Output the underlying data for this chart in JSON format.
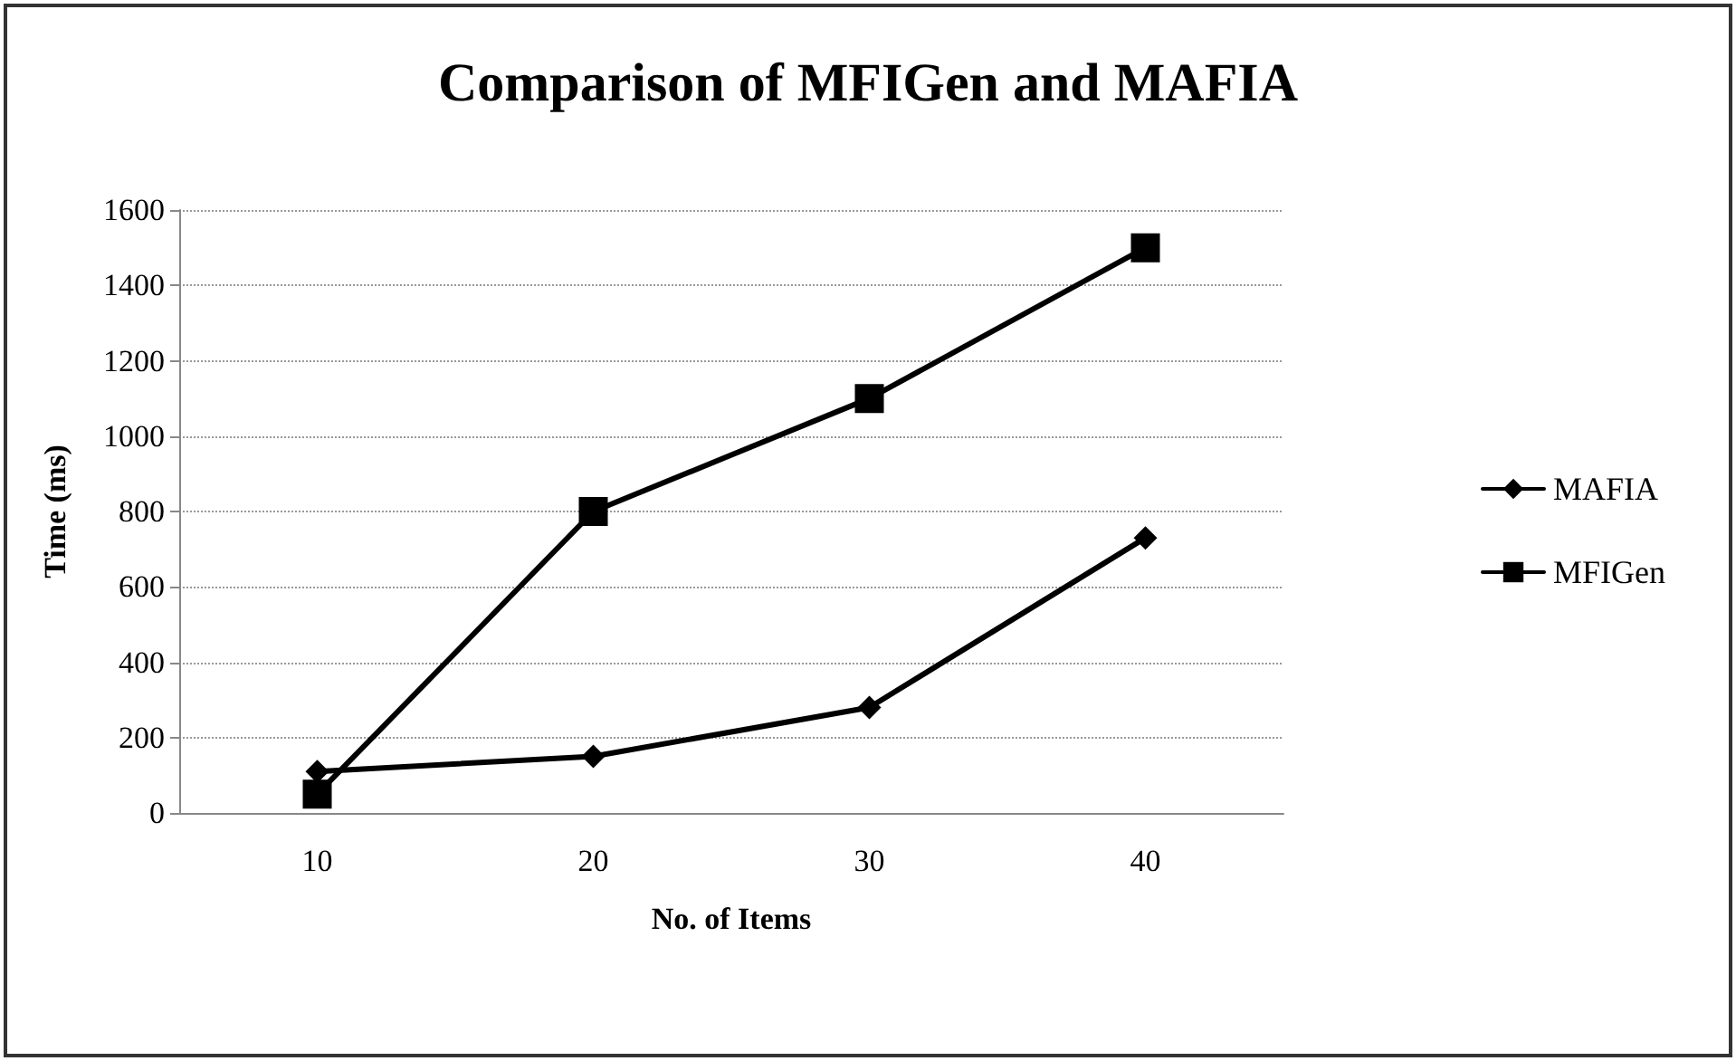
{
  "chart_data": {
    "type": "line",
    "title": "Comparison of MFIGen and MAFIA",
    "xlabel": "No. of Items",
    "ylabel": "Time (ms)",
    "categories": [
      "10",
      "20",
      "30",
      "40"
    ],
    "series": [
      {
        "name": "MAFIA",
        "color": "#000000",
        "values": [
          110,
          150,
          280,
          730
        ],
        "marker": "diamond"
      },
      {
        "name": "MFIGen",
        "color": "#000000",
        "values": [
          50,
          800,
          1100,
          1500
        ],
        "marker": "square"
      }
    ],
    "ylim": [
      0,
      1600
    ],
    "yticks": [
      0,
      200,
      400,
      600,
      800,
      1000,
      1200,
      1400,
      1600
    ],
    "grid": "y",
    "legend": "right",
    "line_style": "solid"
  }
}
